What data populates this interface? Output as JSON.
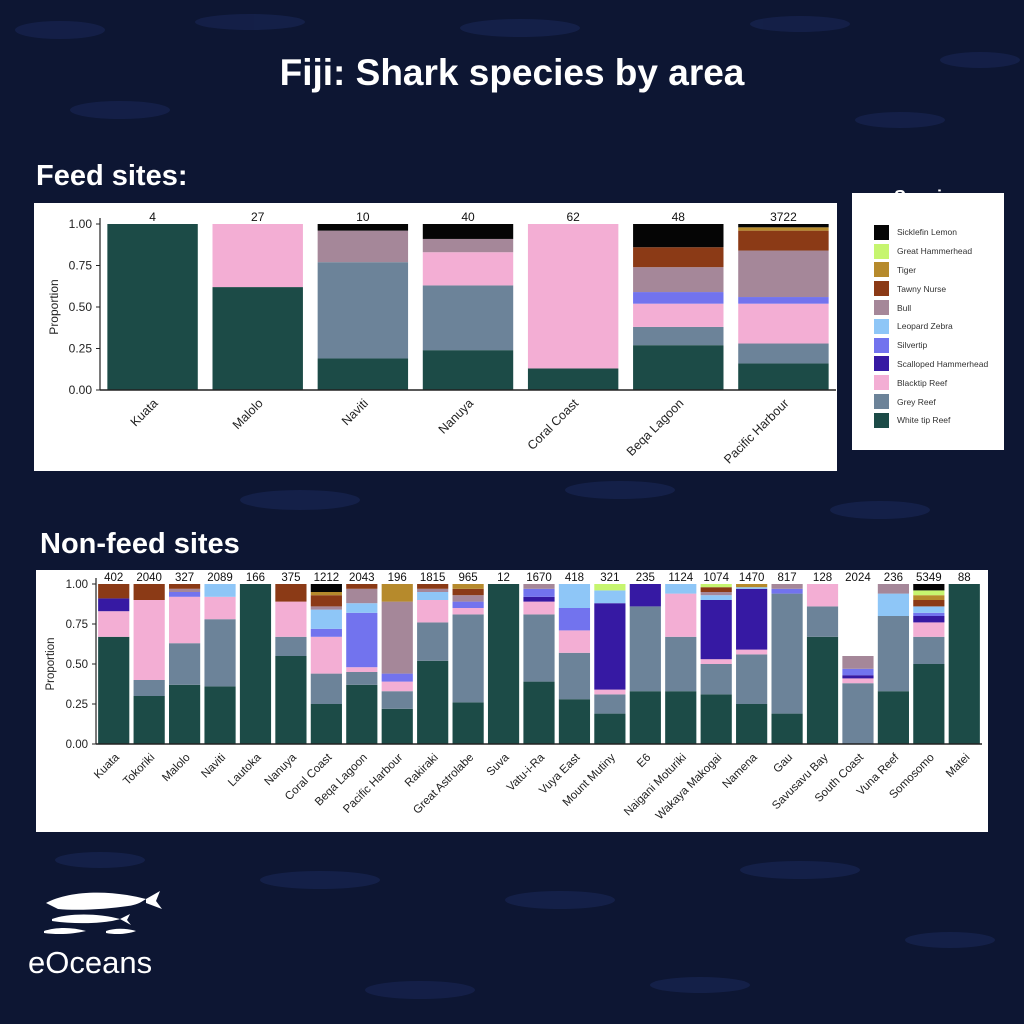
{
  "page": {
    "title": "Fiji: Shark species by area",
    "background": "#0d1633"
  },
  "sections": {
    "feed_label": "Feed sites:",
    "nonfeed_label": "Non-feed sites"
  },
  "legend": {
    "title": "Species",
    "items": [
      {
        "label": "Sicklefin Lemon",
        "color": "#050505"
      },
      {
        "label": "Great Hammerhead",
        "color": "#c6f56f"
      },
      {
        "label": "Tiger",
        "color": "#b68a2c"
      },
      {
        "label": "Tawny Nurse",
        "color": "#8b3a16"
      },
      {
        "label": "Bull",
        "color": "#a58799"
      },
      {
        "label": "Leopard Zebra",
        "color": "#8ec6f7"
      },
      {
        "label": "Silvertip",
        "color": "#7273ee"
      },
      {
        "label": "Scalloped Hammerhead",
        "color": "#3619a3"
      },
      {
        "label": "Blacktip Reef",
        "color": "#f3aed4"
      },
      {
        "label": "Grey Reef",
        "color": "#6c8399"
      },
      {
        "label": "White tip Reef",
        "color": "#1c4b47"
      }
    ]
  },
  "brand": {
    "name": "eOceans"
  },
  "chart_data": [
    {
      "type": "bar",
      "stacked": true,
      "ylabel": "Proportion",
      "ylim": [
        0,
        1
      ],
      "yticks": [
        "0.00",
        "0.25",
        "0.50",
        "0.75",
        "1.00"
      ],
      "categories": [
        "Kuata",
        "Malolo",
        "Naviti",
        "Nanuya",
        "Coral Coast",
        "Beqa Lagoon",
        "Pacific Harbour"
      ],
      "totals": [
        "4",
        "27",
        "10",
        "40",
        "62",
        "48",
        "3722"
      ],
      "stacks": [
        {
          "White tip Reef": 1.0
        },
        {
          "White tip Reef": 0.62,
          "Blacktip Reef": 0.38
        },
        {
          "White tip Reef": 0.19,
          "Grey Reef": 0.58,
          "Bull": 0.19,
          "Sicklefin Lemon": 0.04
        },
        {
          "White tip Reef": 0.24,
          "Grey Reef": 0.39,
          "Blacktip Reef": 0.2,
          "Bull": 0.08,
          "Sicklefin Lemon": 0.09
        },
        {
          "White tip Reef": 0.13,
          "Blacktip Reef": 0.87
        },
        {
          "White tip Reef": 0.27,
          "Grey Reef": 0.11,
          "Blacktip Reef": 0.14,
          "Silvertip": 0.07,
          "Bull": 0.15,
          "Tawny Nurse": 0.12,
          "Sicklefin Lemon": 0.14
        },
        {
          "White tip Reef": 0.16,
          "Grey Reef": 0.12,
          "Blacktip Reef": 0.24,
          "Silvertip": 0.04,
          "Bull": 0.28,
          "Tawny Nurse": 0.12,
          "Tiger": 0.02,
          "Sicklefin Lemon": 0.02
        }
      ]
    },
    {
      "type": "bar",
      "stacked": true,
      "ylabel": "Proportion",
      "ylim": [
        0,
        1
      ],
      "yticks": [
        "0.00",
        "0.25",
        "0.50",
        "0.75",
        "1.00"
      ],
      "categories": [
        "Kuata",
        "Tokoriki",
        "Malolo",
        "Naviti",
        "Lautoka",
        "Nanuya",
        "Coral Coast",
        "Beqa Lagoon",
        "Pacific Harbour",
        "Rakiraki",
        "Great Astrolabe",
        "Suva",
        "Vatu-i-Ra",
        "Vuya East",
        "Mount Mutiny",
        "E6",
        "Naigani Moturiki",
        "Wakaya Makogai",
        "Namena",
        "Gau",
        "Savusavu Bay",
        "South Coast",
        "Vuna Reef",
        "Somosomo",
        "Matei"
      ],
      "totals": [
        "402",
        "2040",
        "327",
        "2089",
        "166",
        "375",
        "1212",
        "2043",
        "196",
        "1815",
        "965",
        "12",
        "1670",
        "418",
        "321",
        "235",
        "1124",
        "1074",
        "1470",
        "817",
        "128",
        "2024",
        "236",
        "5349",
        "88"
      ],
      "stacks": [
        {
          "White tip Reef": 0.67,
          "Blacktip Reef": 0.16,
          "Scalloped Hammerhead": 0.08,
          "Tawny Nurse": 0.09
        },
        {
          "White tip Reef": 0.3,
          "Grey Reef": 0.1,
          "Blacktip Reef": 0.5,
          "Tawny Nurse": 0.1
        },
        {
          "White tip Reef": 0.37,
          "Grey Reef": 0.26,
          "Blacktip Reef": 0.29,
          "Silvertip": 0.03,
          "Bull": 0.02,
          "Tawny Nurse": 0.03
        },
        {
          "White tip Reef": 0.36,
          "Grey Reef": 0.42,
          "Blacktip Reef": 0.14,
          "Leopard Zebra": 0.08
        },
        {
          "White tip Reef": 1.0
        },
        {
          "White tip Reef": 0.55,
          "Grey Reef": 0.12,
          "Blacktip Reef": 0.22,
          "Tawny Nurse": 0.11
        },
        {
          "White tip Reef": 0.25,
          "Grey Reef": 0.19,
          "Blacktip Reef": 0.23,
          "Silvertip": 0.05,
          "Leopard Zebra": 0.12,
          "Bull": 0.02,
          "Tawny Nurse": 0.07,
          "Tiger": 0.02,
          "Sicklefin Lemon": 0.05
        },
        {
          "White tip Reef": 0.37,
          "Grey Reef": 0.08,
          "Blacktip Reef": 0.03,
          "Silvertip": 0.34,
          "Leopard Zebra": 0.06,
          "Bull": 0.09,
          "Tawny Nurse": 0.03
        },
        {
          "White tip Reef": 0.22,
          "Grey Reef": 0.11,
          "Blacktip Reef": 0.06,
          "Silvertip": 0.05,
          "Bull": 0.45,
          "Tiger": 0.11
        },
        {
          "White tip Reef": 0.52,
          "Grey Reef": 0.24,
          "Blacktip Reef": 0.14,
          "Leopard Zebra": 0.05,
          "Bull": 0.02,
          "Tawny Nurse": 0.03
        },
        {
          "White tip Reef": 0.26,
          "Grey Reef": 0.55,
          "Blacktip Reef": 0.04,
          "Silvertip": 0.04,
          "Bull": 0.04,
          "Tawny Nurse": 0.04,
          "Tiger": 0.03
        },
        {
          "White tip Reef": 1.0
        },
        {
          "White tip Reef": 0.39,
          "Grey Reef": 0.42,
          "Blacktip Reef": 0.08,
          "Scalloped Hammerhead": 0.03,
          "Silvertip": 0.05,
          "Bull": 0.03
        },
        {
          "White tip Reef": 0.28,
          "Grey Reef": 0.29,
          "Blacktip Reef": 0.14,
          "Silvertip": 0.14,
          "Leopard Zebra": 0.15
        },
        {
          "White tip Reef": 0.19,
          "Grey Reef": 0.12,
          "Blacktip Reef": 0.03,
          "Scalloped Hammerhead": 0.54,
          "Leopard Zebra": 0.08,
          "Great Hammerhead": 0.04
        },
        {
          "White tip Reef": 0.33,
          "Grey Reef": 0.53,
          "Scalloped Hammerhead": 0.14
        },
        {
          "White tip Reef": 0.33,
          "Grey Reef": 0.34,
          "Blacktip Reef": 0.27,
          "Leopard Zebra": 0.06
        },
        {
          "White tip Reef": 0.31,
          "Grey Reef": 0.19,
          "Blacktip Reef": 0.03,
          "Scalloped Hammerhead": 0.37,
          "Leopard Zebra": 0.03,
          "Bull": 0.02,
          "Tawny Nurse": 0.03,
          "Great Hammerhead": 0.02
        },
        {
          "White tip Reef": 0.25,
          "Grey Reef": 0.31,
          "Blacktip Reef": 0.03,
          "Scalloped Hammerhead": 0.38,
          "Leopard Zebra": 0.01,
          "Tiger": 0.02
        },
        {
          "White tip Reef": 0.19,
          "Grey Reef": 0.75,
          "Silvertip": 0.03,
          "Bull": 0.03
        },
        {
          "White tip Reef": 0.67,
          "Grey Reef": 0.19,
          "Blacktip Reef": 0.14
        },
        {
          "Scalloped Hammerhead": 0.02,
          "Grey Reef": 0.38,
          "Blacktip Reef": 0.03,
          "White tip Reef": 0.0,
          "Silvertip": 0.04,
          "Bull": 0.08,
          "Leopard Zebra": 0.0,
          "Tawny Nurse": 0.0,
          "Great Hammerhead": 0.0,
          "Tiger": 0.0,
          "Sicklefin Lemon": 0.0
        },
        {
          "White tip Reef": 0.33,
          "Grey Reef": 0.47,
          "Leopard Zebra": 0.14,
          "Bull": 0.06
        },
        {
          "White tip Reef": 0.5,
          "Grey Reef": 0.17,
          "Blacktip Reef": 0.09,
          "Scalloped Hammerhead": 0.04,
          "Silvertip": 0.02,
          "Leopard Zebra": 0.04,
          "Tawny Nurse": 0.04,
          "Tiger": 0.03,
          "Great Hammerhead": 0.03,
          "Sicklefin Lemon": 0.04
        },
        {
          "White tip Reef": 1.0
        }
      ]
    }
  ]
}
